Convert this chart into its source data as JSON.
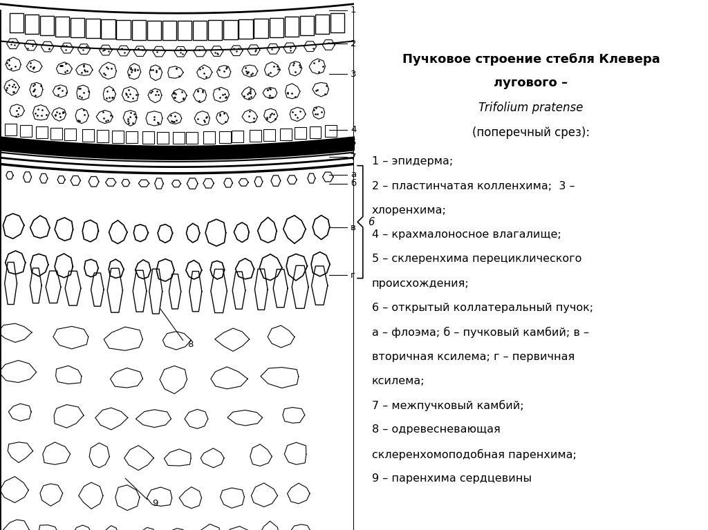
{
  "title_bold": "Пучковое строение стебля Клевера лугового",
  "title_dash": " –",
  "title_italic": "Trifolium pratense",
  "title_paren": "(поперечный срез):",
  "legend_lines": [
    "1 – эпидерма;",
    "2 – пластинчатая колленхима;  3 –",
    "хлоренхима;",
    "4 – крахмалоносное влагалище;",
    "5 – склеренхима перециклического",
    "происхождения;",
    "6 – открытый коллатеральный пучок;",
    "а – флоэма; б – пучковый камбий; в –",
    "вторичная ксилема; г – первичная",
    "ксилема;",
    "7 – межпучковый камбий;",
    "8 – одревесневающая",
    "склеренхомоподобная паренхима;",
    "9 – паренхима сердцевины"
  ],
  "bg_color": "#ffffff",
  "text_color": "#000000"
}
